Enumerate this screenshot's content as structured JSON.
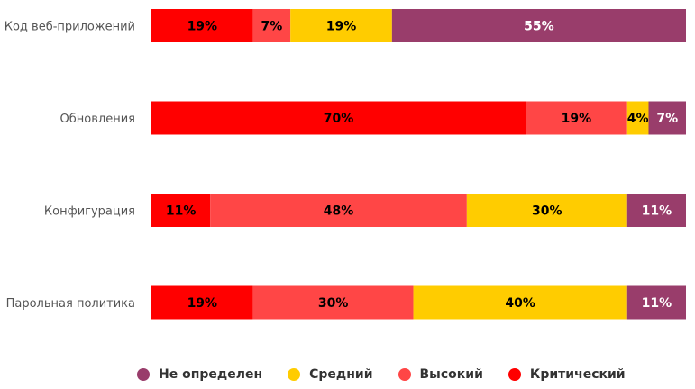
{
  "chart_data": {
    "type": "bar",
    "orientation": "horizontal",
    "stacked": true,
    "categories": [
      "Код веб-приложений",
      "Обновления",
      "Конфигурация",
      "Парольная политика"
    ],
    "series": [
      {
        "name": "Критический",
        "color": "#FF0000",
        "text_color": "#000000",
        "values": [
          19,
          70,
          11,
          19
        ],
        "labels": [
          "19%",
          "70%",
          "11%",
          "19%"
        ]
      },
      {
        "name": "Высокий",
        "color": "#FF4646",
        "text_color": "#000000",
        "values": [
          7,
          19,
          48,
          30
        ],
        "labels": [
          "7%",
          "19%",
          "48%",
          "30%"
        ]
      },
      {
        "name": "Средний",
        "color": "#FFCC00",
        "text_color": "#000000",
        "values": [
          19,
          4,
          30,
          40
        ],
        "labels": [
          "19%",
          "4%",
          "30%",
          "40%"
        ]
      },
      {
        "name": "Не определен",
        "color": "#993D6B",
        "text_color": "#FFFFFF",
        "values": [
          55,
          7,
          11,
          11
        ],
        "labels": [
          "55%",
          "7%",
          "11%",
          "11%"
        ]
      }
    ],
    "xlim": [
      0,
      100
    ],
    "grid": false,
    "legend_position": "bottom",
    "legend_order": [
      "Не определен",
      "Средний",
      "Высокий",
      "Критический"
    ]
  }
}
